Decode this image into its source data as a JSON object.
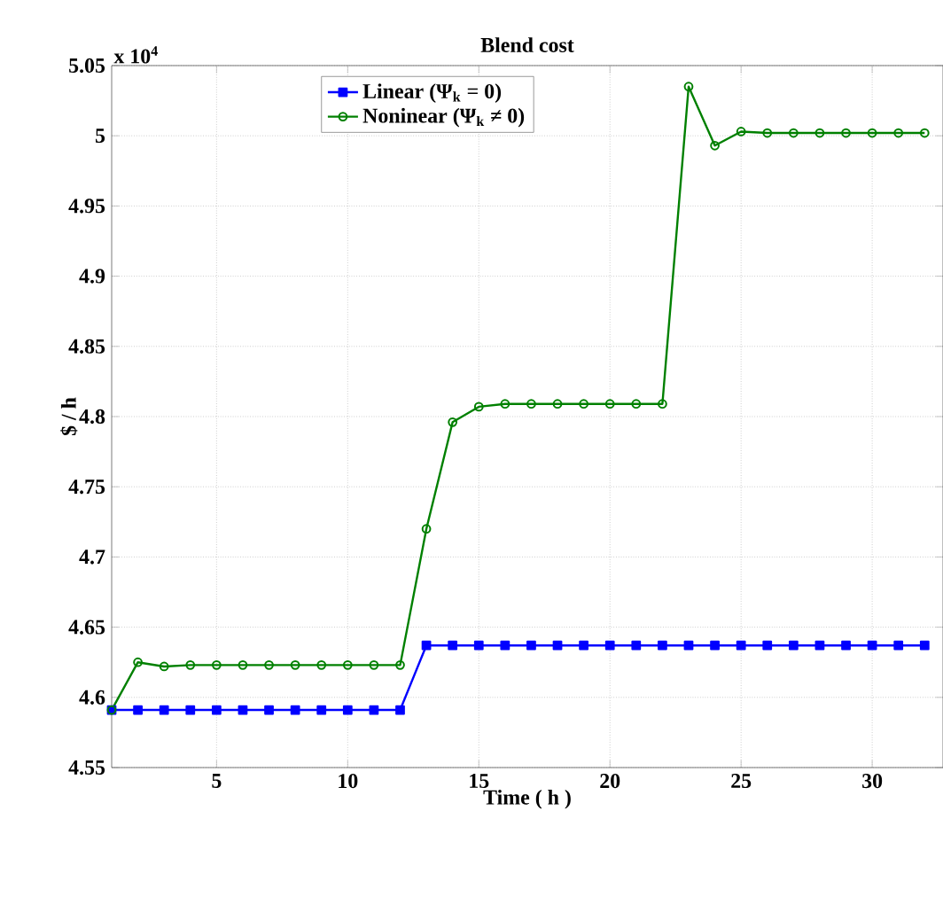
{
  "chart_data": {
    "type": "line",
    "title": "Blend cost",
    "xlabel": "Time ( h )",
    "ylabel": "$ / h",
    "annotations": [
      "x 10$^{4}$"
    ],
    "x": [
      1,
      2,
      3,
      4,
      5,
      6,
      7,
      8,
      9,
      10,
      11,
      12,
      13,
      14,
      15,
      16,
      17,
      18,
      19,
      20,
      21,
      22,
      23,
      24,
      25,
      26,
      27,
      28,
      29,
      30,
      31,
      32
    ],
    "xlim": [
      1,
      32.7
    ],
    "xticks": [
      5,
      10,
      15,
      20,
      25,
      30
    ],
    "ylim": [
      4.55,
      5.05
    ],
    "yticks": [
      4.55,
      4.6,
      4.65,
      4.7,
      4.75,
      4.8,
      4.85,
      4.9,
      4.95,
      5,
      5.05
    ],
    "grid": true,
    "legend": "top",
    "series": [
      {
        "name": "Linear (Ψ$_{k}$ = 0)",
        "color": "#0000ff",
        "marker": "square",
        "values": [
          4.591,
          4.591,
          4.591,
          4.591,
          4.591,
          4.591,
          4.591,
          4.591,
          4.591,
          4.591,
          4.591,
          4.591,
          4.637,
          4.637,
          4.637,
          4.637,
          4.637,
          4.637,
          4.637,
          4.637,
          4.637,
          4.637,
          4.637,
          4.637,
          4.637,
          4.637,
          4.637,
          4.637,
          4.637,
          4.637,
          4.637,
          4.637
        ]
      },
      {
        "name": "Noninear (Ψ$_{k}$ ≠ 0)",
        "color": "#008000",
        "marker": "circle",
        "values": [
          4.591,
          4.625,
          4.622,
          4.623,
          4.623,
          4.623,
          4.623,
          4.623,
          4.623,
          4.623,
          4.623,
          4.623,
          4.72,
          4.796,
          4.807,
          4.809,
          4.809,
          4.809,
          4.809,
          4.809,
          4.809,
          4.809,
          5.035,
          4.993,
          5.003,
          5.002,
          5.002,
          5.002,
          5.002,
          5.002,
          5.002,
          5.002
        ]
      }
    ]
  }
}
